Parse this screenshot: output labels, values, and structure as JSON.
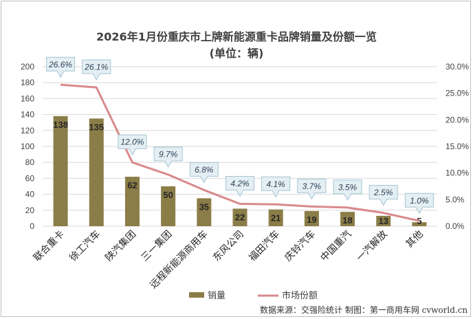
{
  "chart_data": {
    "type": "bar+line",
    "title": "2026年1月份重庆市上牌新能源重卡品牌销量及份额一览",
    "subtitle": "(单位：辆)",
    "categories": [
      "联合重卡",
      "徐工汽车",
      "陕汽集团",
      "三一集团",
      "远程新能源商用车",
      "东风公司",
      "福田汽车",
      "庆铃汽车",
      "中国重汽",
      "一汽解放",
      "其他"
    ],
    "series": [
      {
        "name": "销量",
        "type": "bar",
        "axis": "left",
        "values": [
          138,
          135,
          62,
          50,
          35,
          22,
          21,
          19,
          18,
          13,
          5
        ]
      },
      {
        "name": "市场份额",
        "type": "line",
        "axis": "right",
        "values": [
          26.6,
          26.1,
          12.0,
          9.7,
          6.8,
          4.2,
          4.1,
          3.7,
          3.5,
          2.5,
          1.0
        ],
        "labels": [
          "26.6%",
          "26.1%",
          "12.0%",
          "9.7%",
          "6.8%",
          "4.2%",
          "4.1%",
          "3.7%",
          "3.5%",
          "2.5%",
          "1.0%"
        ]
      }
    ],
    "left_axis": {
      "min": 0,
      "max": 200,
      "step": 20,
      "ticks": [
        "0",
        "20",
        "40",
        "60",
        "80",
        "100",
        "120",
        "140",
        "160",
        "180",
        "200"
      ]
    },
    "right_axis": {
      "min": 0,
      "max": 30,
      "step": 5,
      "ticks": [
        "0.0%",
        "5.0%",
        "10.0%",
        "15.0%",
        "20.0%",
        "25.0%",
        "30.0%"
      ]
    },
    "gridlines": true,
    "legend_position": "bottom",
    "colors": {
      "bar": "#8b7d48",
      "line": "#d9898b",
      "callout_fill": "#e4eff4",
      "callout_border": "#a4c4d2",
      "label_text": "#2c4256",
      "grid": "#d9d9d9",
      "axis_text": "#404040"
    }
  },
  "footer": "数据来源：交强险统计 制图：第一商用车网 cvworld.cn"
}
